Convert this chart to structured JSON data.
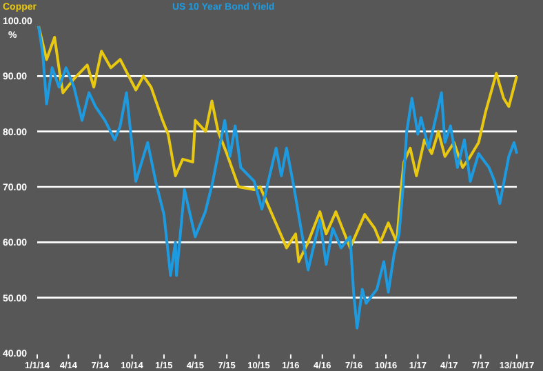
{
  "chart_data": {
    "type": "line",
    "ylabel": "%",
    "legend": "top",
    "grid": "y",
    "xlim": [
      "2014-01-01",
      "2017-10-13"
    ],
    "ylim": [
      40,
      100
    ],
    "yticks": [
      {
        "value": 40,
        "label": "40.00"
      },
      {
        "value": 50,
        "label": "50.00"
      },
      {
        "value": 60,
        "label": "60.00"
      },
      {
        "value": 70,
        "label": "70.00"
      },
      {
        "value": 80,
        "label": "80.00"
      },
      {
        "value": 90,
        "label": "90.00"
      },
      {
        "value": 100,
        "label": "100.00"
      }
    ],
    "xticks": [
      {
        "value": "2014-01-01",
        "label": "1/1/14"
      },
      {
        "value": "2014-04-01",
        "label": "4/14"
      },
      {
        "value": "2014-07-01",
        "label": "7/14"
      },
      {
        "value": "2014-10-01",
        "label": "10/14"
      },
      {
        "value": "2015-01-01",
        "label": "1/15"
      },
      {
        "value": "2015-04-01",
        "label": "4/15"
      },
      {
        "value": "2015-07-01",
        "label": "7/15"
      },
      {
        "value": "2015-10-01",
        "label": "10/15"
      },
      {
        "value": "2016-01-01",
        "label": "1/16"
      },
      {
        "value": "2016-04-01",
        "label": "4/16"
      },
      {
        "value": "2016-07-01",
        "label": "7/16"
      },
      {
        "value": "2016-10-01",
        "label": "10/16"
      },
      {
        "value": "2017-01-01",
        "label": "1/17"
      },
      {
        "value": "2017-04-01",
        "label": "4/17"
      },
      {
        "value": "2017-07-01",
        "label": "7/17"
      },
      {
        "value": "2017-10-13",
        "label": "13/10/17"
      }
    ],
    "series": [
      {
        "name": "Copper",
        "color": "#e8c810",
        "x": [
          "2014-01-05",
          "2014-01-28",
          "2014-02-20",
          "2014-03-08",
          "2014-03-16",
          "2014-04-17",
          "2014-05-25",
          "2014-06-13",
          "2014-07-05",
          "2014-08-01",
          "2014-08-28",
          "2014-10-12",
          "2014-11-03",
          "2014-11-25",
          "2014-12-28",
          "2015-01-13",
          "2015-02-03",
          "2015-02-24",
          "2015-03-25",
          "2015-04-01",
          "2015-05-01",
          "2015-05-19",
          "2015-06-06",
          "2015-07-01",
          "2015-08-04",
          "2015-09-18",
          "2015-10-05",
          "2015-12-20",
          "2016-01-15",
          "2016-01-24",
          "2016-02-20",
          "2016-03-25",
          "2016-04-12",
          "2016-05-10",
          "2016-06-20",
          "2016-08-01",
          "2016-08-30",
          "2016-09-15",
          "2016-10-08",
          "2016-11-01",
          "2016-11-15",
          "2016-11-22",
          "2016-12-10",
          "2016-12-28",
          "2017-01-20",
          "2017-02-10",
          "2017-03-01",
          "2017-03-20",
          "2017-04-15",
          "2017-05-10",
          "2017-06-01",
          "2017-06-25",
          "2017-07-15",
          "2017-08-15",
          "2017-09-05",
          "2017-09-20",
          "2017-10-13"
        ],
        "values": [
          99,
          93,
          97,
          90,
          87,
          89.5,
          92,
          88,
          94.5,
          91.5,
          93,
          87.5,
          90,
          88,
          82,
          79.5,
          72,
          75,
          74.5,
          82,
          80,
          85.5,
          80,
          76,
          70,
          69.5,
          70,
          59,
          61.5,
          56.5,
          60,
          65.5,
          61.5,
          65.5,
          59,
          65,
          62.5,
          60,
          63.5,
          60,
          70.5,
          74.5,
          77,
          72,
          78.5,
          76,
          80,
          75.5,
          78,
          73.5,
          75.5,
          78,
          83.5,
          90.5,
          86,
          84.5,
          90
        ]
      },
      {
        "name": "US 10 Year Bond Yield",
        "color": "#1e9be0",
        "x": [
          "2014-01-05",
          "2014-01-17",
          "2014-01-28",
          "2014-02-13",
          "2014-03-05",
          "2014-03-25",
          "2014-04-17",
          "2014-05-10",
          "2014-05-30",
          "2014-06-18",
          "2014-07-15",
          "2014-08-12",
          "2014-08-28",
          "2014-09-15",
          "2014-10-12",
          "2014-11-15",
          "2014-12-10",
          "2015-01-01",
          "2015-01-20",
          "2015-02-03",
          "2015-02-06",
          "2015-03-01",
          "2015-04-01",
          "2015-04-30",
          "2015-05-20",
          "2015-06-25",
          "2015-07-10",
          "2015-07-25",
          "2015-08-10",
          "2015-09-18",
          "2015-10-10",
          "2015-11-01",
          "2015-11-20",
          "2015-12-05",
          "2015-12-20",
          "2016-01-10",
          "2016-02-20",
          "2016-03-25",
          "2016-04-12",
          "2016-05-01",
          "2016-05-25",
          "2016-06-20",
          "2016-06-30",
          "2016-07-10",
          "2016-07-25",
          "2016-08-05",
          "2016-09-05",
          "2016-09-25",
          "2016-10-08",
          "2016-10-25",
          "2016-11-08",
          "2016-11-20",
          "2016-11-30",
          "2016-12-15",
          "2017-01-01",
          "2017-01-10",
          "2017-02-01",
          "2017-02-20",
          "2017-03-10",
          "2017-03-20",
          "2017-04-05",
          "2017-04-25",
          "2017-05-15",
          "2017-06-01",
          "2017-06-25",
          "2017-07-25",
          "2017-08-10",
          "2017-08-25",
          "2017-09-20",
          "2017-10-05",
          "2017-10-13"
        ],
        "values": [
          99,
          94,
          85,
          91.5,
          88,
          91.5,
          88,
          82,
          87,
          84.5,
          82,
          78.5,
          81,
          87,
          71,
          78,
          70.5,
          65,
          54,
          60,
          54,
          69.5,
          61,
          65.5,
          70.5,
          82,
          75.5,
          81,
          73.5,
          71,
          66,
          72,
          77,
          72,
          77,
          70,
          55,
          64,
          56,
          62.5,
          59,
          61,
          51,
          44.5,
          51.5,
          49,
          51.5,
          56.5,
          51,
          58,
          61.5,
          70.5,
          80,
          86,
          79.5,
          82.5,
          77,
          82,
          87,
          78,
          81,
          73.5,
          78.5,
          71,
          76,
          73.5,
          71,
          67,
          75.5,
          78,
          76
        ]
      }
    ]
  }
}
